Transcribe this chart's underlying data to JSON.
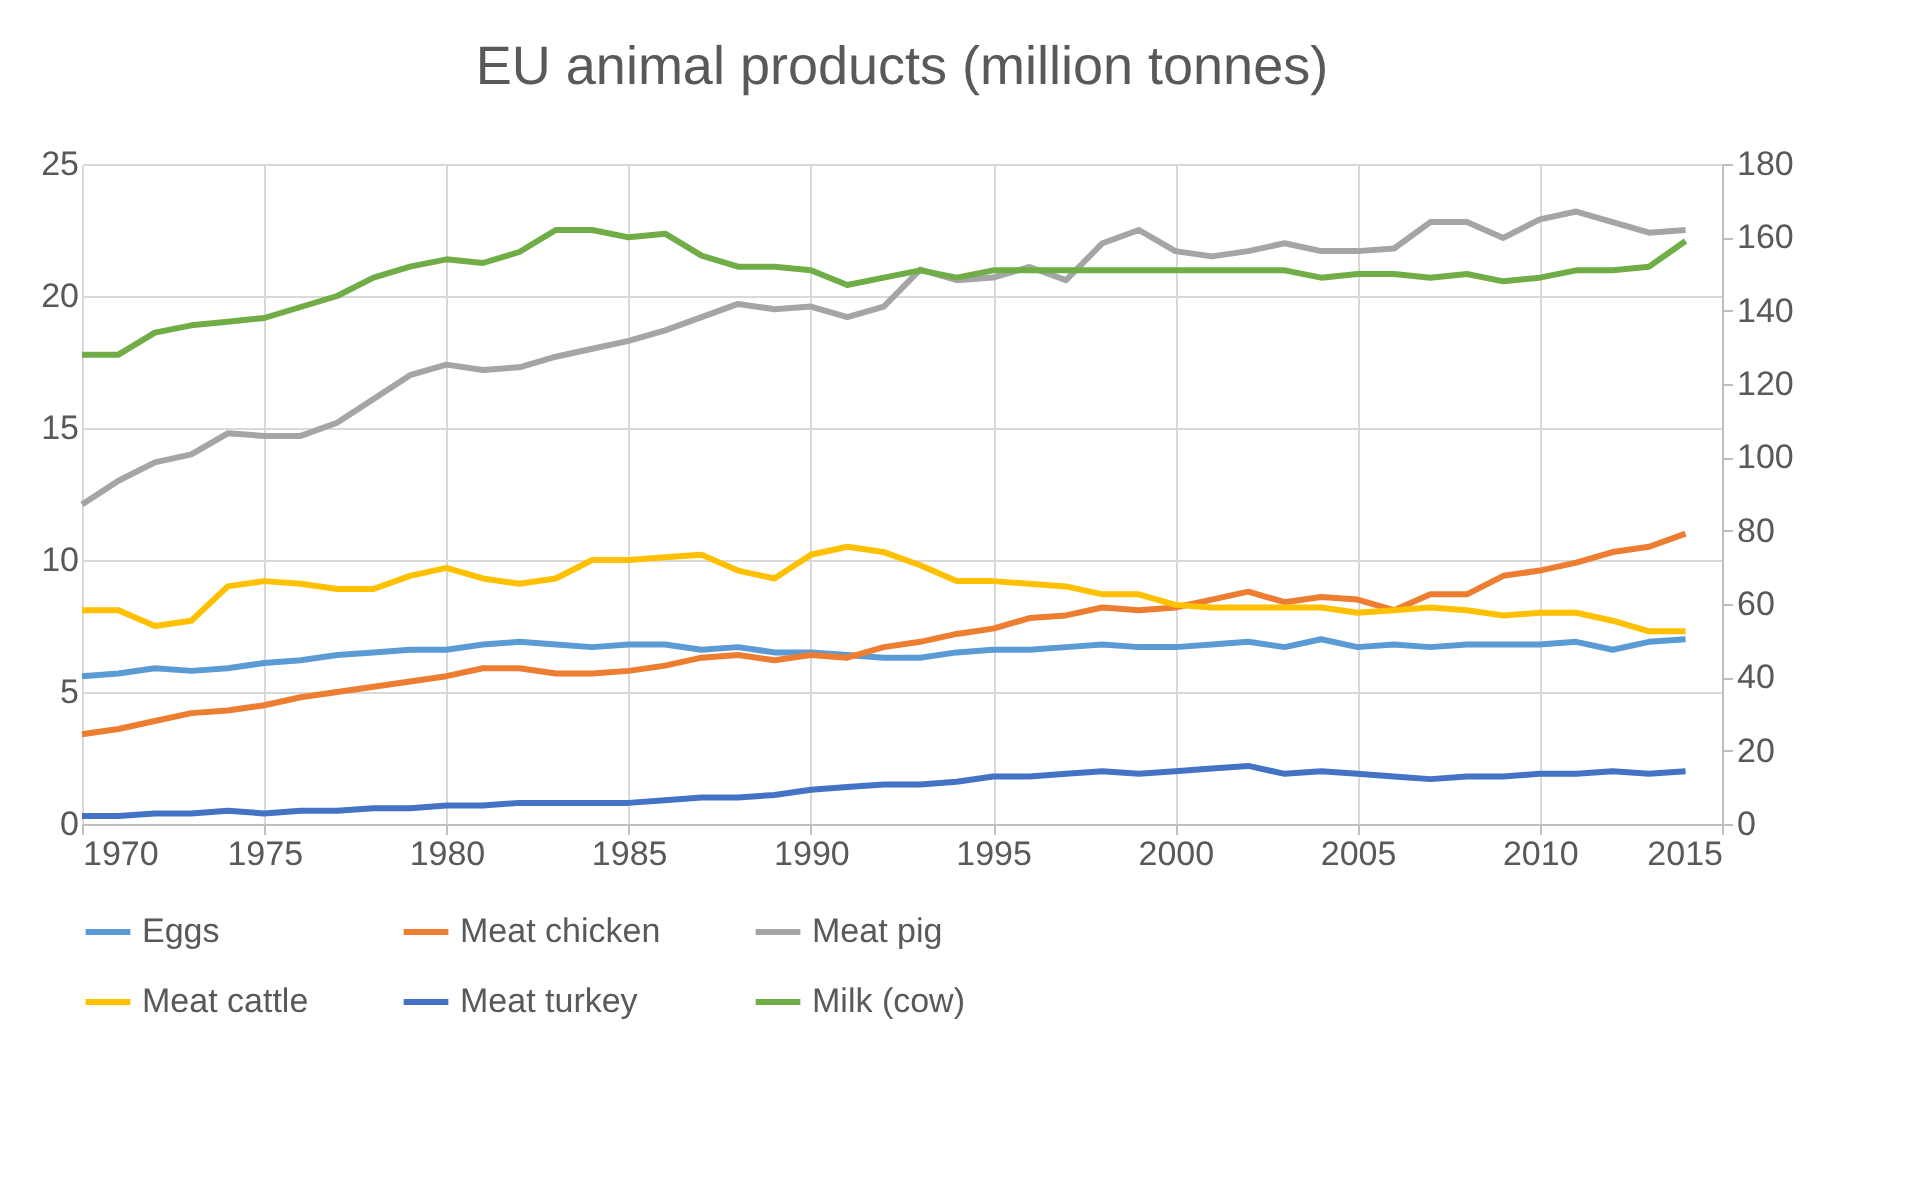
{
  "chart_data": {
    "type": "line",
    "title": "EU animal products (million tonnes)",
    "x": [
      1970,
      1971,
      1972,
      1973,
      1974,
      1975,
      1976,
      1977,
      1978,
      1979,
      1980,
      1981,
      1982,
      1983,
      1984,
      1985,
      1986,
      1987,
      1988,
      1989,
      1990,
      1991,
      1992,
      1993,
      1994,
      1995,
      1996,
      1997,
      1998,
      1999,
      2000,
      2001,
      2002,
      2003,
      2004,
      2005,
      2006,
      2007,
      2008,
      2009,
      2010,
      2011,
      2012,
      2013,
      2014
    ],
    "series": [
      {
        "name": "Eggs",
        "color": "#5b9bd5",
        "values": [
          5.6,
          5.7,
          5.9,
          5.8,
          5.9,
          6.1,
          6.2,
          6.4,
          6.5,
          6.6,
          6.6,
          6.8,
          6.9,
          6.8,
          6.7,
          6.8,
          6.8,
          6.6,
          6.7,
          6.5,
          6.5,
          6.4,
          6.3,
          6.3,
          6.5,
          6.6,
          6.6,
          6.7,
          6.8,
          6.7,
          6.7,
          6.8,
          6.9,
          6.7,
          7.0,
          6.7,
          6.8,
          6.7,
          6.8,
          6.8,
          6.8,
          6.9,
          6.6,
          6.9,
          7.0
        ]
      },
      {
        "name": "Meat chicken",
        "color": "#ed7d31",
        "values": [
          3.4,
          3.6,
          3.9,
          4.2,
          4.3,
          4.5,
          4.8,
          5.0,
          5.2,
          5.4,
          5.6,
          5.9,
          5.9,
          5.7,
          5.7,
          5.8,
          6.0,
          6.3,
          6.4,
          6.2,
          6.4,
          6.3,
          6.7,
          6.9,
          7.2,
          7.4,
          7.8,
          7.9,
          8.2,
          8.1,
          8.2,
          8.5,
          8.8,
          8.4,
          8.6,
          8.5,
          8.1,
          8.7,
          8.7,
          9.4,
          9.6,
          9.9,
          10.3,
          10.5,
          11.0
        ]
      },
      {
        "name": "Meat pig",
        "color": "#a5a5a5",
        "values": [
          12.1,
          13.0,
          13.7,
          14.0,
          14.8,
          14.7,
          14.7,
          15.2,
          16.1,
          17.0,
          17.4,
          17.2,
          17.3,
          17.7,
          18.0,
          18.3,
          18.7,
          19.2,
          19.7,
          19.5,
          19.6,
          19.2,
          19.6,
          21.0,
          20.6,
          20.7,
          21.1,
          20.6,
          22.0,
          22.5,
          21.7,
          21.5,
          21.7,
          22.0,
          21.7,
          21.7,
          21.8,
          22.8,
          22.8,
          22.2,
          22.9,
          23.2,
          22.8,
          22.4,
          22.5
        ]
      },
      {
        "name": "Meat cattle",
        "color": "#ffc000",
        "values": [
          8.1,
          8.1,
          7.5,
          7.7,
          9.0,
          9.2,
          9.1,
          8.9,
          8.9,
          9.4,
          9.7,
          9.3,
          9.1,
          9.3,
          10.0,
          10.0,
          10.1,
          10.2,
          9.6,
          9.3,
          10.2,
          10.5,
          10.3,
          9.8,
          9.2,
          9.2,
          9.1,
          9.0,
          8.7,
          8.7,
          8.3,
          8.2,
          8.2,
          8.2,
          8.2,
          8.0,
          8.1,
          8.2,
          8.1,
          7.9,
          8.0,
          8.0,
          7.7,
          7.3,
          7.3
        ]
      },
      {
        "name": "Meat turkey",
        "color": "#4472c4",
        "values": [
          0.3,
          0.3,
          0.4,
          0.4,
          0.5,
          0.4,
          0.5,
          0.5,
          0.6,
          0.6,
          0.7,
          0.7,
          0.8,
          0.8,
          0.8,
          0.8,
          0.9,
          1.0,
          1.0,
          1.1,
          1.3,
          1.4,
          1.5,
          1.5,
          1.6,
          1.8,
          1.8,
          1.9,
          2.0,
          1.9,
          2.0,
          2.1,
          2.2,
          1.9,
          2.0,
          1.9,
          1.8,
          1.7,
          1.8,
          1.8,
          1.9,
          1.9,
          2.0,
          1.9,
          2.0
        ]
      },
      {
        "name": "Milk (cow)",
        "color": "#70ad47",
        "axis": "y2",
        "values": [
          128,
          128,
          134,
          136,
          137,
          138,
          141,
          144,
          149,
          152,
          154,
          153,
          156,
          162,
          162,
          160,
          161,
          155,
          152,
          152,
          151,
          147,
          149,
          151,
          149,
          151,
          151,
          151,
          151,
          151,
          151,
          151,
          151,
          151,
          149,
          150,
          150,
          149,
          150,
          148,
          149,
          151,
          151,
          152,
          159
        ]
      }
    ],
    "xlim": [
      1970,
      2015
    ],
    "xticks": [
      1970,
      1975,
      1980,
      1985,
      1990,
      1995,
      2000,
      2005,
      2010,
      2015
    ],
    "ylim": [
      0,
      25
    ],
    "yticks": [
      0,
      5,
      10,
      15,
      20,
      25
    ],
    "y2lim": [
      0,
      180
    ],
    "y2ticks": [
      0,
      20,
      40,
      60,
      80,
      100,
      120,
      140,
      160,
      180
    ],
    "grid": true,
    "legend": "bottom",
    "marker": "none",
    "line_style": "solid"
  }
}
